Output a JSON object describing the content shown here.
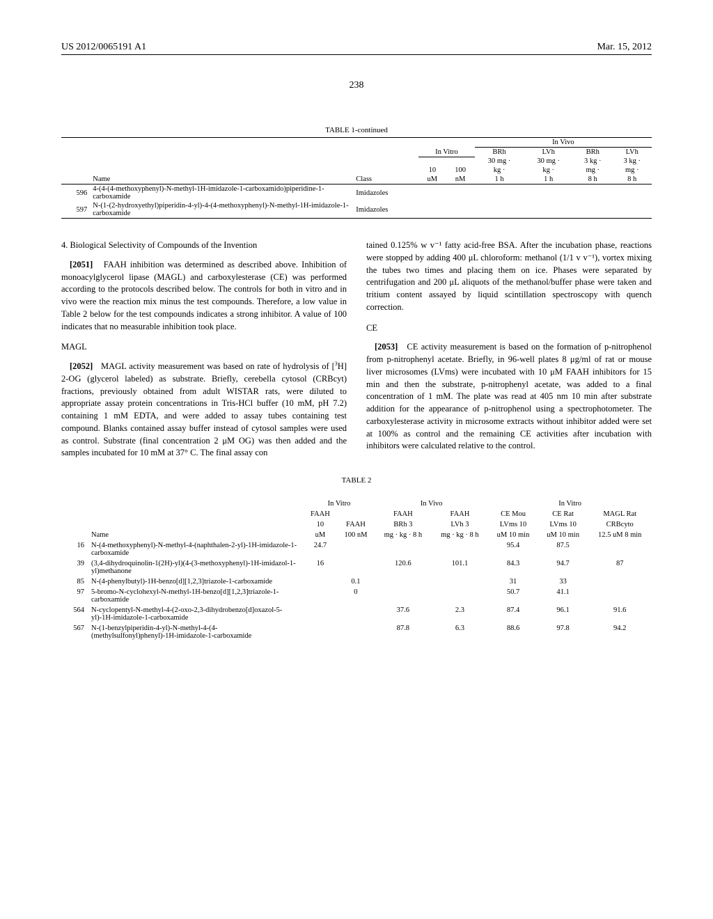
{
  "header": {
    "left": "US 2012/0065191 A1",
    "right": "Mar. 15, 2012"
  },
  "page_number": "238",
  "table1": {
    "caption": "TABLE 1-continued",
    "group_headers": {
      "in_vitro": "In Vitro",
      "in_vivo": "In Vivo"
    },
    "columns": [
      "",
      "Name",
      "Class",
      "10\nuM",
      "100\nnM",
      "BRh\n30 mg ·\nkg ·\n1 h",
      "LVh\n30 mg ·\nkg ·\n1 h",
      "BRh\n3 kg ·\nmg ·\n8 h",
      "LVh\n3 kg ·\nmg ·\n8 h"
    ],
    "rows": [
      {
        "id": "596",
        "name": "4-(4-(4-methoxyphenyl)-N-methyl-1H-imidazole-1-carboxamido)piperidine-1-carboxamide",
        "class": "Imidazoles"
      },
      {
        "id": "597",
        "name": "N-(1-(2-hydroxyethyl)piperidin-4-yl)-4-(4-methoxyphenyl)-N-methyl-1H-imidazole-1-carboxamide",
        "class": "Imidazoles"
      }
    ]
  },
  "body": {
    "section4_title": "4. Biological Selectivity of Compounds of the Invention",
    "para2051_num": "[2051]",
    "para2051": "FAAH inhibition was determined as described above. Inhibition of monoacylglycerol lipase (MAGL) and carboxylesterase (CE) was performed according to the protocols described below. The controls for both in vitro and in vivo were the reaction mix minus the test compounds. Therefore, a low value in Table 2 below for the test compounds indicates a strong inhibitor. A value of 100 indicates that no measurable inhibition took place.",
    "magl_head": "MAGL",
    "para2052_num": "[2052]",
    "para2052a": "MAGL activity measurement was based on rate of hydrolysis of [",
    "para2052b": "H] 2-OG (glycerol labeled) as substrate. Briefly, cerebella cytosol (CRBcyt) fractions, previously obtained from adult WISTAR rats, were diluted to appropriate assay protein concentrations in Tris-HCl buffer (10 mM, pH 7.2) containing 1 mM EDTA, and were added to assay tubes containing test compound. Blanks contained assay buffer instead of cytosol samples were used as control. Substrate (final concentration 2 μM OG) was then added and the samples incubated for 10 mM at 37° C. The final assay con",
    "para2052c": "tained 0.125% w v⁻¹ fatty acid-free BSA. After the incubation phase, reactions were stopped by adding 400 μL chloroform: methanol (1/1 v v⁻¹), vortex mixing the tubes two times and placing them on ice. Phases were separated by centrifugation and 200 μL aliquots of the methanol/buffer phase were taken and tritium content assayed by liquid scintillation spectroscopy with quench correction.",
    "ce_head": "CE",
    "para2053_num": "[2053]",
    "para2053": "CE activity measurement is based on the formation of p-nitrophenol from p-nitrophenyl acetate. Briefly, in 96-well plates 8 μg/ml of rat or mouse liver microsomes (LVms) were incubated with 10 μM FAAH inhibitors for 15 min and then the substrate, p-nitrophenyl acetate, was added to a final concentration of 1 mM. The plate was read at 405 nm 10 min after substrate addition for the appearance of p-nitrophenol using a spectrophotometer. The carboxylesterase activity in microsome extracts without inhibitor added were set at 100% as control and the remaining CE activities after incubation with inhibitors were calculated relative to the control."
  },
  "table2": {
    "caption": "TABLE 2",
    "group_headers": {
      "in_vitro1": "In Vitro",
      "in_vivo": "In Vivo",
      "in_vitro2": "In Vitro"
    },
    "columns": {
      "name": "Name",
      "c1a": "FAAH",
      "c1b": "10",
      "c1c": "uM",
      "c2a": "FAAH",
      "c2b": "100 nM",
      "c3a": "FAAH",
      "c3b": "BRh 3",
      "c3c": "mg · kg · 8 h",
      "c4a": "FAAH",
      "c4b": "LVh 3",
      "c4c": "mg · kg · 8 h",
      "c5a": "CE Mou",
      "c5b": "LVms 10",
      "c5c": "uM 10 min",
      "c6a": "CE Rat",
      "c6b": "LVms 10",
      "c6c": "uM 10 min",
      "c7a": "MAGL Rat",
      "c7b": "CRBcyto",
      "c7c": "12.5 uM 8 min"
    },
    "rows": [
      {
        "id": "16",
        "name": "N-(4-methoxyphenyl)-N-methyl-4-(naphthalen-2-yl)-1H-imidazole-1-carboxamide",
        "v1": "24.7",
        "v2": "",
        "v3": "",
        "v4": "",
        "v5": "95.4",
        "v6": "87.5",
        "v7": ""
      },
      {
        "id": "39",
        "name": "(3,4-dihydroquinolin-1(2H)-yl)(4-(3-methoxyphenyl)-1H-imidazol-1-yl)methanone",
        "v1": "16",
        "v2": "",
        "v3": "120.6",
        "v4": "101.1",
        "v5": "84.3",
        "v6": "94.7",
        "v7": "87"
      },
      {
        "id": "85",
        "name": "N-(4-phenylbutyl)-1H-benzo[d][1,2,3]triazole-1-carboxamide",
        "v1": "",
        "v2": "0.1",
        "v3": "",
        "v4": "",
        "v5": "31",
        "v6": "33",
        "v7": ""
      },
      {
        "id": "97",
        "name": "5-bromo-N-cyclohexyl-N-methyl-1H-benzo[d][1,2,3]triazole-1-carboxamide",
        "v1": "",
        "v2": "0",
        "v3": "",
        "v4": "",
        "v5": "50.7",
        "v6": "41.1",
        "v7": ""
      },
      {
        "id": "564",
        "name": "N-cyclopentyl-N-methyl-4-(2-oxo-2,3-dihydrobenzo[d]oxazol-5-yl)-1H-imidazole-1-carboxamide",
        "v1": "",
        "v2": "",
        "v3": "37.6",
        "v4": "2.3",
        "v5": "87.4",
        "v6": "96.1",
        "v7": "91.6"
      },
      {
        "id": "567",
        "name": "N-(1-benzylpiperidin-4-yl)-N-methyl-4-(4-(methylsulfonyl)phenyl)-1H-imidazole-1-carboxamide",
        "v1": "",
        "v2": "",
        "v3": "87.8",
        "v4": "6.3",
        "v5": "88.6",
        "v6": "97.8",
        "v7": "94.2"
      }
    ]
  }
}
